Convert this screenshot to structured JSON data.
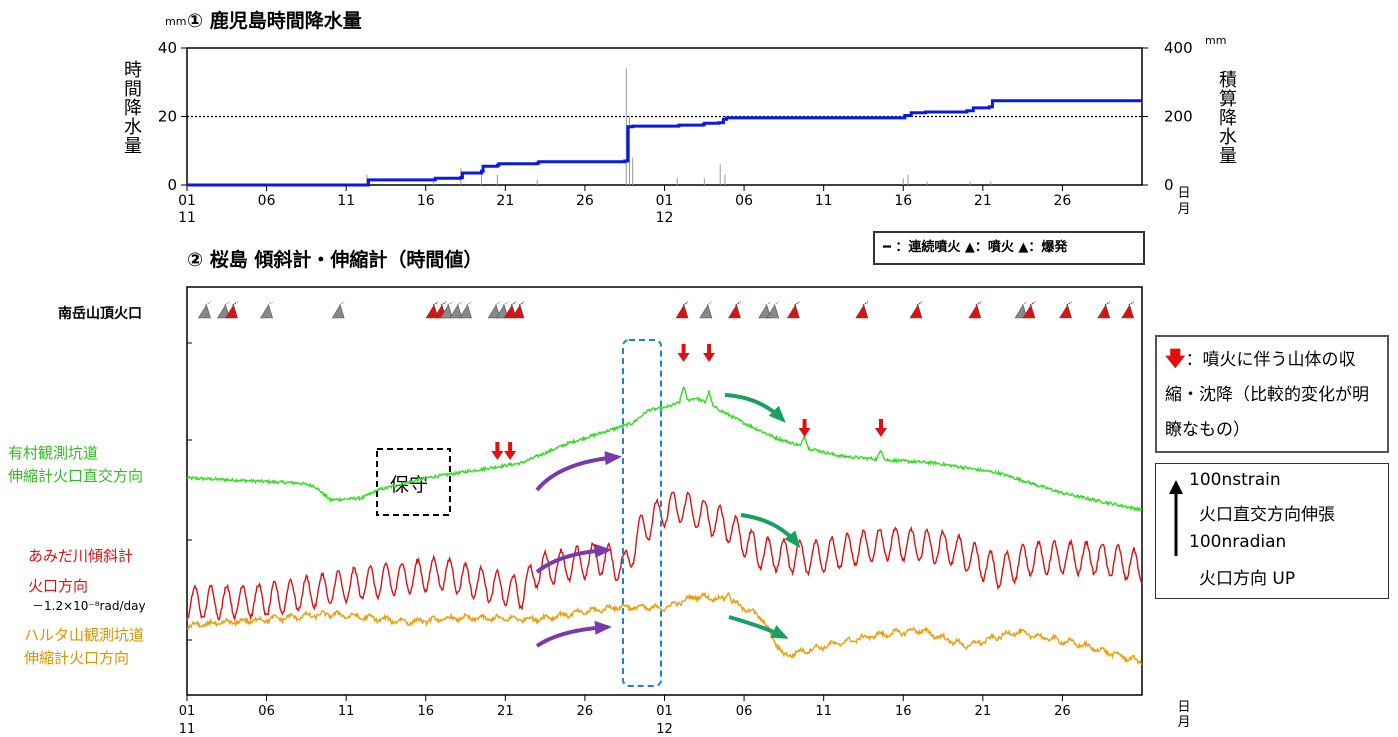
{
  "chart_data": [
    {
      "type": "bar+line",
      "title": "① 鹿児島時間降水量",
      "ylabel": "時間降水量",
      "y2label": "積算降水量",
      "y_unit": "mm",
      "y2_unit": "mm",
      "ylim": [
        0,
        40
      ],
      "y2lim": [
        0,
        400
      ],
      "yticks": [
        "0",
        "20",
        "40"
      ],
      "y2ticks": [
        "0",
        "200",
        "400"
      ],
      "x_day_range": [
        1,
        61
      ],
      "xticks": [
        "01",
        "06",
        "11",
        "16",
        "21",
        "26",
        "01",
        "06",
        "11",
        "16",
        "21",
        "26"
      ],
      "xtick_days": [
        1,
        6,
        11,
        16,
        21,
        26,
        31,
        36,
        41,
        46,
        51,
        56
      ],
      "month_labels": [
        {
          "day": 1,
          "label": "11"
        },
        {
          "day": 31,
          "label": "12"
        }
      ],
      "xlabel_right": [
        "日",
        "月"
      ],
      "dotted_reference_y": 20,
      "hourly_bars": [
        {
          "day": 12.3,
          "value": 3
        },
        {
          "day": 16.5,
          "value": 2
        },
        {
          "day": 18.2,
          "value": 5
        },
        {
          "day": 19.5,
          "value": 4
        },
        {
          "day": 20.5,
          "value": 3
        },
        {
          "day": 23.0,
          "value": 1.5
        },
        {
          "day": 28.6,
          "value": 34
        },
        {
          "day": 28.8,
          "value": 20
        },
        {
          "day": 29.0,
          "value": 8
        },
        {
          "day": 31.8,
          "value": 2
        },
        {
          "day": 33.5,
          "value": 2
        },
        {
          "day": 34.5,
          "value": 6
        },
        {
          "day": 34.8,
          "value": 3
        },
        {
          "day": 46.0,
          "value": 2
        },
        {
          "day": 46.3,
          "value": 3
        },
        {
          "day": 47.5,
          "value": 1
        },
        {
          "day": 50.2,
          "value": 1
        },
        {
          "day": 51.5,
          "value": 1
        }
      ],
      "cumulative_series": {
        "name": "積算降水量",
        "color": "#0a1adf",
        "x": [
          1,
          12.3,
          12.4,
          16.5,
          16.6,
          18.2,
          18.3,
          19.5,
          19.6,
          20.5,
          20.6,
          23.0,
          23.1,
          28.5,
          28.7,
          29.0,
          31.8,
          31.9,
          33.4,
          33.5,
          34.4,
          34.7,
          34.9,
          45.8,
          46.1,
          46.5,
          47.4,
          50.0,
          50.4,
          51.4,
          51.6,
          61
        ],
        "y": [
          0,
          0,
          15,
          15,
          20,
          22,
          35,
          40,
          55,
          58,
          62,
          64,
          68,
          70,
          170,
          172,
          172,
          175,
          176,
          180,
          182,
          192,
          196,
          196,
          203,
          211,
          213,
          217,
          225,
          228,
          246,
          246
        ]
      }
    },
    {
      "type": "line",
      "title": "② 桜島 傾斜計・伸縮計（時間値）",
      "x_day_range": [
        1,
        61
      ],
      "xticks": [
        "01",
        "06",
        "11",
        "16",
        "21",
        "26",
        "01",
        "06",
        "11",
        "16",
        "21",
        "26"
      ],
      "xtick_days": [
        1,
        6,
        11,
        16,
        21,
        26,
        31,
        36,
        41,
        46,
        51,
        56
      ],
      "month_labels": [
        {
          "day": 1,
          "label": "11"
        },
        {
          "day": 31,
          "label": "12"
        }
      ],
      "xlabel_right": [
        "日",
        "月"
      ],
      "series": [
        {
          "name": "有村観測坑道\n伸縮計火口直交方向",
          "color": "#33dd22",
          "amplitude": 1.2,
          "freq": 0,
          "knots": [
            [
              1,
              0
            ],
            [
              8,
              -5
            ],
            [
              9,
              -8
            ],
            [
              10,
              -22
            ],
            [
              12,
              -20
            ],
            [
              13,
              -12
            ],
            [
              16,
              0
            ],
            [
              20,
              10
            ],
            [
              22,
              15
            ],
            [
              25,
              35
            ],
            [
              27,
              45
            ],
            [
              29,
              55
            ],
            [
              30,
              68
            ],
            [
              31,
              70
            ],
            [
              32,
              76
            ],
            [
              33,
              80
            ],
            [
              34,
              72
            ],
            [
              36,
              55
            ],
            [
              38,
              40
            ],
            [
              40,
              30
            ],
            [
              42,
              22
            ],
            [
              45,
              18
            ],
            [
              48,
              15
            ],
            [
              52,
              5
            ],
            [
              56,
              -15
            ],
            [
              58,
              -22
            ],
            [
              61,
              -32
            ]
          ],
          "spikes": [
            [
              32.2,
              15
            ],
            [
              33.8,
              13
            ],
            [
              39.8,
              12
            ],
            [
              44.6,
              10
            ]
          ]
        },
        {
          "name": "あみだ川傾斜計\n火口方向",
          "color": "#e01010",
          "amplitude": 16,
          "freq": 1.0,
          "knots": [
            [
              1,
              -5
            ],
            [
              6,
              -2
            ],
            [
              12,
              15
            ],
            [
              17,
              25
            ],
            [
              20,
              12
            ],
            [
              22,
              5
            ],
            [
              23,
              28
            ],
            [
              26,
              36
            ],
            [
              27,
              40
            ],
            [
              28.5,
              30
            ],
            [
              29.5,
              68
            ],
            [
              31,
              88
            ],
            [
              32,
              92
            ],
            [
              35,
              72
            ],
            [
              37,
              45
            ],
            [
              40,
              40
            ],
            [
              45,
              55
            ],
            [
              49,
              50
            ],
            [
              52,
              26
            ],
            [
              54,
              40
            ],
            [
              58,
              40
            ],
            [
              60,
              35
            ],
            [
              61,
              30
            ]
          ],
          "spikes": []
        },
        {
          "name": "ハルタ山観測坑道\n伸縮計火口方向",
          "color": "#e8a010",
          "amplitude": 2.2,
          "freq": 1.0,
          "knots": [
            [
              1,
              0
            ],
            [
              10,
              12
            ],
            [
              15,
              4
            ],
            [
              18,
              8
            ],
            [
              23,
              7
            ],
            [
              28,
              19
            ],
            [
              31,
              18
            ],
            [
              33,
              30
            ],
            [
              35,
              26
            ],
            [
              37,
              10
            ],
            [
              38.5,
              -30
            ],
            [
              40,
              -24
            ],
            [
              44,
              -10
            ],
            [
              47,
              -4
            ],
            [
              50,
              -20
            ],
            [
              53,
              -6
            ],
            [
              57,
              -18
            ],
            [
              61,
              -36
            ]
          ],
          "spikes": [
            [
              35.0,
              10
            ]
          ]
        }
      ],
      "eruption_row_label": "南岳山頂火口",
      "eruptions": [
        {
          "day": 2.1,
          "kind": "噴火"
        },
        {
          "day": 3.3,
          "kind": "噴火"
        },
        {
          "day": 3.8,
          "kind": "爆発"
        },
        {
          "day": 6.0,
          "kind": "噴火"
        },
        {
          "day": 10.5,
          "kind": "噴火"
        },
        {
          "day": 16.4,
          "kind": "爆発"
        },
        {
          "day": 16.9,
          "kind": "爆発"
        },
        {
          "day": 17.3,
          "kind": "噴火"
        },
        {
          "day": 17.9,
          "kind": "噴火"
        },
        {
          "day": 18.5,
          "kind": "噴火"
        },
        {
          "day": 20.3,
          "kind": "噴火"
        },
        {
          "day": 20.8,
          "kind": "噴火"
        },
        {
          "day": 21.3,
          "kind": "爆発"
        },
        {
          "day": 21.8,
          "kind": "爆発"
        },
        {
          "day": 32.1,
          "kind": "爆発"
        },
        {
          "day": 33.6,
          "kind": "噴火"
        },
        {
          "day": 35.4,
          "kind": "爆発"
        },
        {
          "day": 37.3,
          "kind": "噴火"
        },
        {
          "day": 37.8,
          "kind": "噴火"
        },
        {
          "day": 39.1,
          "kind": "爆発"
        },
        {
          "day": 43.4,
          "kind": "爆発"
        },
        {
          "day": 46.8,
          "kind": "爆発"
        },
        {
          "day": 50.5,
          "kind": "爆発"
        },
        {
          "day": 53.4,
          "kind": "噴火"
        },
        {
          "day": 53.9,
          "kind": "爆発"
        },
        {
          "day": 56.2,
          "kind": "爆発"
        },
        {
          "day": 58.6,
          "kind": "爆発"
        },
        {
          "day": 60.1,
          "kind": "爆発"
        }
      ],
      "deflation_marks_days": [
        20.5,
        21.3,
        32.2,
        33.8,
        39.8,
        44.6
      ],
      "annotations": {
        "maintenance": "保守",
        "tilt_correction": "－1.2×10⁻⁸rad/day"
      },
      "legend_symbols": "━ ：連続噴火 ▲：噴火 ▲：爆発",
      "legend_note": "：噴火に伴う山体の収縮・沈降（比較的変化が明瞭なもの）",
      "scale_note": {
        "strain": "100nstrain",
        "strain_dir": "火口直交方向伸張",
        "tilt": "100nradian",
        "tilt_dir": "火口方向 UP"
      }
    }
  ]
}
